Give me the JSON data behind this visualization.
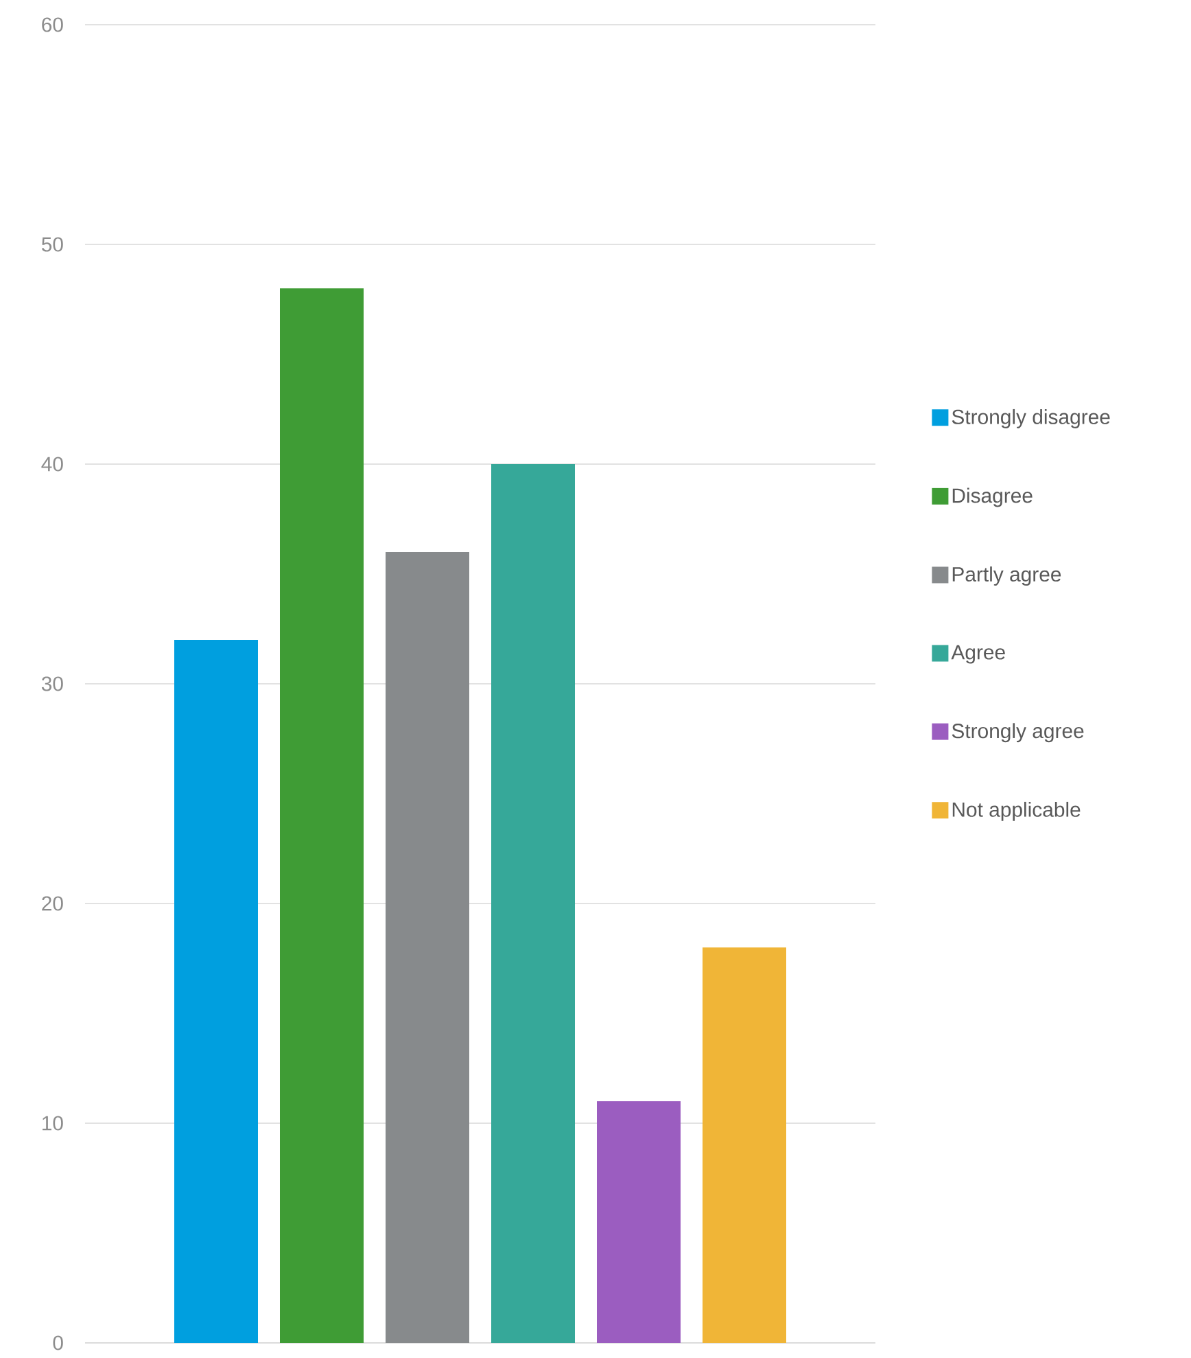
{
  "chart_data": {
    "type": "bar",
    "categories": [
      null
    ],
    "series": [
      {
        "name": "Strongly disagree",
        "color": "#009fdf",
        "values": [
          32
        ]
      },
      {
        "name": "Disagree",
        "color": "#3f9c35",
        "values": [
          48
        ]
      },
      {
        "name": "Partly agree",
        "color": "#878a8c",
        "values": [
          36
        ]
      },
      {
        "name": "Agree",
        "color": "#36a899",
        "values": [
          40
        ]
      },
      {
        "name": "Strongly agree",
        "color": "#9b5dc0",
        "values": [
          11
        ]
      },
      {
        "name": "Not applicable",
        "color": "#f0b537",
        "values": [
          18
        ]
      }
    ],
    "ylim": [
      0,
      60
    ],
    "yticks": [
      0,
      10,
      20,
      30,
      40,
      50,
      60
    ],
    "grid": "y",
    "legend": "right",
    "tick_labels": "y"
  }
}
